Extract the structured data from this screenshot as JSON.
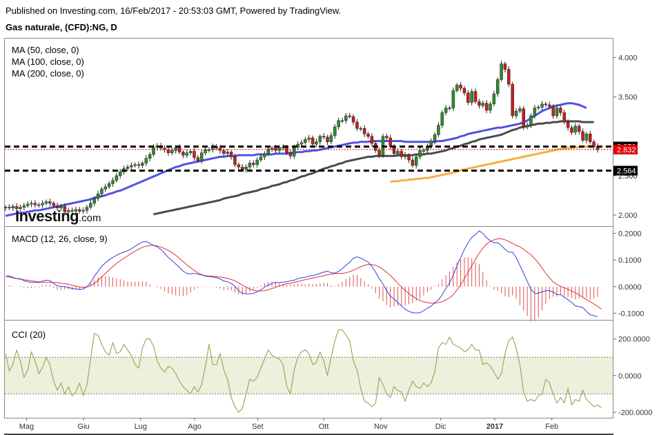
{
  "header": {
    "published_line": "Published on Investing.com, 16/Feb/2017 - 20:53:03 GMT, Powered by TradingView.",
    "symbol_title": "Gas naturale, (CFD):NG, D"
  },
  "watermark": {
    "brand": "Investing",
    "suffix": ".com"
  },
  "colors": {
    "candle_up": "#2e8b2e",
    "candle_down": "#c81e1e",
    "ma50": "#5050e6",
    "ma100": "#4a4a4a",
    "ma200": "#f5b040",
    "macd_line": "#3a3ae0",
    "macd_signal": "#e03030",
    "macd_hist": "#e05050",
    "cci_line": "#9ea85a",
    "cci_band": "#eef0dc",
    "level_line": "#000000",
    "current_price_bg": "#e00000",
    "level_label_bg": "#000000"
  },
  "chart_data": [
    {
      "type": "candlestick",
      "panel": "price",
      "indicators": [
        "MA (50, close, 0)",
        "MA (100, close, 0)",
        "MA (200, close, 0)"
      ],
      "yticks": [
        "4.000",
        "3.500",
        "2.500",
        "2.000"
      ],
      "ylim": [
        1.86,
        4.24
      ],
      "xlabels": [
        "Mag",
        "Giu",
        "Lug",
        "Ago",
        "Set",
        "Ott",
        "Nov",
        "Dic",
        "2017",
        "Feb"
      ],
      "levels": {
        "upper": "2.870",
        "lower": "2.564"
      },
      "current_price": "2.832",
      "close_series": [
        2.1,
        2.09,
        2.11,
        2.08,
        2.1,
        2.12,
        2.14,
        2.15,
        2.13,
        2.13,
        2.15,
        2.17,
        2.15,
        2.12,
        2.09,
        2.11,
        2.04,
        2.06,
        2.05,
        2.07,
        2.05,
        2.06,
        2.1,
        2.15,
        2.21,
        2.27,
        2.33,
        2.36,
        2.4,
        2.44,
        2.5,
        2.55,
        2.59,
        2.61,
        2.63,
        2.64,
        2.63,
        2.66,
        2.72,
        2.77,
        2.86,
        2.88,
        2.85,
        2.83,
        2.79,
        2.82,
        2.86,
        2.8,
        2.76,
        2.79,
        2.81,
        2.73,
        2.69,
        2.79,
        2.83,
        2.83,
        2.87,
        2.85,
        2.82,
        2.78,
        2.8,
        2.74,
        2.64,
        2.61,
        2.58,
        2.61,
        2.66,
        2.64,
        2.7,
        2.74,
        2.78,
        2.84,
        2.85,
        2.82,
        2.86,
        2.86,
        2.79,
        2.75,
        2.86,
        2.9,
        2.92,
        2.96,
        2.98,
        2.9,
        2.93,
        3.0,
        2.99,
        2.93,
        3.01,
        3.12,
        3.2,
        3.2,
        3.26,
        3.25,
        3.18,
        3.1,
        3.1,
        3.03,
        3.0,
        2.91,
        2.82,
        2.76,
        3.0,
        2.98,
        2.87,
        2.78,
        2.81,
        2.74,
        2.76,
        2.7,
        2.63,
        2.74,
        2.82,
        2.82,
        2.87,
        2.94,
        3.02,
        3.14,
        3.3,
        3.36,
        3.36,
        3.58,
        3.65,
        3.61,
        3.55,
        3.43,
        3.57,
        3.44,
        3.39,
        3.42,
        3.33,
        3.41,
        3.54,
        3.72,
        3.92,
        3.85,
        3.66,
        3.26,
        3.32,
        3.35,
        3.12,
        3.14,
        3.26,
        3.36,
        3.37,
        3.41,
        3.4,
        3.38,
        3.26,
        3.36,
        3.3,
        3.18,
        3.11,
        3.05,
        3.13,
        3.06,
        2.95,
        3.03,
        2.93,
        2.87,
        2.83
      ],
      "ma50_series": [
        1.99,
        2.0,
        2.01,
        2.02,
        2.03,
        2.03,
        2.04,
        2.05,
        2.06,
        2.06,
        2.07,
        2.08,
        2.09,
        2.1,
        2.11,
        2.12,
        2.13,
        2.14,
        2.15,
        2.16,
        2.17,
        2.18,
        2.19,
        2.2,
        2.22,
        2.23,
        2.24,
        2.25,
        2.27,
        2.28,
        2.3,
        2.31,
        2.33,
        2.35,
        2.37,
        2.39,
        2.41,
        2.43,
        2.45,
        2.47,
        2.49,
        2.51,
        2.53,
        2.55,
        2.57,
        2.59,
        2.61,
        2.62,
        2.64,
        2.65,
        2.66,
        2.67,
        2.68,
        2.69,
        2.7,
        2.71,
        2.72,
        2.73,
        2.74,
        2.74,
        2.75,
        2.75,
        2.75,
        2.76,
        2.76,
        2.76,
        2.76,
        2.76,
        2.77,
        2.77,
        2.77,
        2.77,
        2.77,
        2.78,
        2.78,
        2.78,
        2.78,
        2.79,
        2.79,
        2.8,
        2.8,
        2.81,
        2.81,
        2.82,
        2.82,
        2.83,
        2.84,
        2.85,
        2.86,
        2.87,
        2.88,
        2.89,
        2.9,
        2.91,
        2.92,
        2.92,
        2.93,
        2.93,
        2.93,
        2.94,
        2.94,
        2.94,
        2.94,
        2.94,
        2.94,
        2.94,
        2.94,
        2.94,
        2.93,
        2.93,
        2.93,
        2.93,
        2.93,
        2.93,
        2.93,
        2.93,
        2.93,
        2.94,
        2.94,
        2.95,
        2.96,
        2.97,
        2.98,
        3.0,
        3.01,
        3.03,
        3.04,
        3.05,
        3.06,
        3.07,
        3.08,
        3.09,
        3.1,
        3.11,
        3.11,
        3.12,
        3.13,
        3.14,
        3.15,
        3.16,
        3.18,
        3.2,
        3.23,
        3.26,
        3.29,
        3.32,
        3.34,
        3.36,
        3.38,
        3.39,
        3.4,
        3.41,
        3.42,
        3.42,
        3.41,
        3.4,
        3.38,
        3.36
      ],
      "ma100_series": [
        null,
        null,
        null,
        null,
        null,
        null,
        null,
        null,
        null,
        null,
        null,
        null,
        null,
        null,
        null,
        null,
        null,
        null,
        null,
        null,
        null,
        null,
        null,
        null,
        null,
        null,
        null,
        null,
        null,
        null,
        null,
        null,
        null,
        null,
        null,
        null,
        null,
        null,
        null,
        null,
        2.01,
        2.02,
        2.03,
        2.04,
        2.05,
        2.06,
        2.07,
        2.08,
        2.09,
        2.1,
        2.11,
        2.12,
        2.13,
        2.14,
        2.15,
        2.16,
        2.17,
        2.18,
        2.19,
        2.21,
        2.22,
        2.23,
        2.24,
        2.25,
        2.27,
        2.28,
        2.29,
        2.3,
        2.31,
        2.33,
        2.34,
        2.35,
        2.37,
        2.38,
        2.39,
        2.41,
        2.42,
        2.44,
        2.45,
        2.47,
        2.49,
        2.5,
        2.52,
        2.53,
        2.55,
        2.57,
        2.59,
        2.6,
        2.62,
        2.63,
        2.65,
        2.66,
        2.68,
        2.69,
        2.7,
        2.71,
        2.72,
        2.73,
        2.74,
        2.74,
        2.75,
        2.75,
        2.75,
        2.75,
        2.75,
        2.75,
        2.76,
        2.76,
        2.76,
        2.76,
        2.76,
        2.77,
        2.77,
        2.77,
        2.78,
        2.78,
        2.79,
        2.8,
        2.81,
        2.82,
        2.84,
        2.85,
        2.87,
        2.88,
        2.9,
        2.91,
        2.93,
        2.94,
        2.96,
        2.97,
        2.98,
        2.99,
        3.0,
        3.01,
        3.02,
        3.04,
        3.06,
        3.08,
        3.09,
        3.11,
        3.12,
        3.13,
        3.14,
        3.15,
        3.16,
        3.16,
        3.17,
        3.17,
        3.18,
        3.18,
        3.19,
        3.19,
        3.19,
        3.19,
        3.19,
        3.19,
        3.18,
        3.18,
        3.18,
        3.18
      ],
      "ma200_series": [
        null,
        null,
        null,
        null,
        null,
        null,
        null,
        null,
        null,
        null,
        null,
        null,
        null,
        null,
        null,
        null,
        null,
        null,
        null,
        null,
        null,
        null,
        null,
        null,
        null,
        null,
        null,
        null,
        null,
        null,
        null,
        null,
        null,
        null,
        null,
        null,
        null,
        null,
        null,
        null,
        null,
        null,
        null,
        null,
        null,
        null,
        null,
        null,
        null,
        null,
        null,
        null,
        null,
        null,
        null,
        null,
        null,
        null,
        null,
        null,
        null,
        null,
        null,
        null,
        null,
        null,
        null,
        null,
        null,
        null,
        null,
        null,
        null,
        null,
        null,
        null,
        null,
        null,
        null,
        null,
        null,
        null,
        null,
        null,
        null,
        null,
        null,
        null,
        null,
        null,
        null,
        null,
        null,
        null,
        null,
        null,
        null,
        null,
        null,
        null,
        null,
        null,
        null,
        null,
        2.42,
        2.43,
        2.43,
        2.44,
        2.44,
        2.45,
        2.45,
        2.46,
        2.46,
        2.47,
        2.47,
        2.48,
        2.49,
        2.5,
        2.51,
        2.52,
        2.53,
        2.54,
        2.55,
        2.57,
        2.58,
        2.59,
        2.6,
        2.61,
        2.62,
        2.63,
        2.64,
        2.65,
        2.66,
        2.67,
        2.68,
        2.69,
        2.7,
        2.71,
        2.72,
        2.73,
        2.74,
        2.75,
        2.76,
        2.77,
        2.78,
        2.79,
        2.8,
        2.81,
        2.82,
        2.83,
        2.84,
        2.84,
        2.85,
        2.85,
        2.86,
        2.86,
        2.87,
        2.87,
        2.88,
        2.88
      ]
    },
    {
      "type": "line+histogram",
      "panel": "macd",
      "title": "MACD (12, 26, close, 9)",
      "yticks": [
        "0.2000",
        "0.1000",
        "0.0000",
        "-0.1000"
      ],
      "ylim": [
        -0.125,
        0.225
      ],
      "macd_series": [
        0.04,
        0.04,
        0.035,
        0.03,
        0.03,
        0.022,
        0.019,
        0.016,
        0.017,
        0.015,
        0.021,
        0.024,
        0.023,
        0.012,
        0.003,
        0.001,
        0.0,
        -0.003,
        -0.007,
        -0.009,
        -0.01,
        -0.009,
        0.0,
        0.016,
        0.039,
        0.058,
        0.077,
        0.09,
        0.101,
        0.11,
        0.118,
        0.125,
        0.13,
        0.135,
        0.142,
        0.152,
        0.16,
        0.168,
        0.17,
        0.163,
        0.155,
        0.15,
        0.14,
        0.125,
        0.11,
        0.098,
        0.085,
        0.072,
        0.058,
        0.05,
        0.048,
        0.05,
        0.047,
        0.044,
        0.039,
        0.038,
        0.037,
        0.034,
        0.029,
        0.021,
        0.018,
        0.012,
        0.001,
        -0.015,
        -0.025,
        -0.027,
        -0.027,
        -0.025,
        -0.02,
        -0.012,
        -0.002,
        0.006,
        0.012,
        0.016,
        0.015,
        0.017,
        0.018,
        0.022,
        0.024,
        0.03,
        0.034,
        0.035,
        0.04,
        0.041,
        0.045,
        0.05,
        0.055,
        0.058,
        0.052,
        0.051,
        0.057,
        0.068,
        0.08,
        0.092,
        0.107,
        0.112,
        0.107,
        0.1,
        0.092,
        0.076,
        0.055,
        0.03,
        0.01,
        -0.015,
        -0.036,
        -0.046,
        -0.06,
        -0.072,
        -0.085,
        -0.093,
        -0.098,
        -0.099,
        -0.098,
        -0.09,
        -0.081,
        -0.074,
        -0.06,
        -0.05,
        -0.03,
        -0.007,
        0.014,
        0.044,
        0.078,
        0.11,
        0.14,
        0.165,
        0.185,
        0.196,
        0.21,
        0.2,
        0.184,
        0.172,
        0.165,
        0.165,
        0.155,
        0.14,
        0.13,
        0.13,
        0.11,
        0.08,
        0.05,
        0.02,
        -0.01,
        -0.025,
        -0.025,
        -0.02,
        -0.015,
        -0.015,
        -0.02,
        -0.03,
        -0.03,
        -0.04,
        -0.049,
        -0.06,
        -0.072,
        -0.075,
        -0.078,
        -0.093,
        -0.106,
        -0.109,
        -0.113
      ],
      "signal_series": [
        0.04,
        0.036,
        0.033,
        0.03,
        0.028,
        0.026,
        0.024,
        0.022,
        0.02,
        0.018,
        0.016,
        0.016,
        0.016,
        0.016,
        0.015,
        0.013,
        0.011,
        0.009,
        0.005,
        0.002,
        -0.001,
        -0.003,
        -0.001,
        0.004,
        0.012,
        0.023,
        0.037,
        0.05,
        0.063,
        0.075,
        0.087,
        0.097,
        0.107,
        0.116,
        0.125,
        0.133,
        0.141,
        0.148,
        0.152,
        0.155,
        0.155,
        0.153,
        0.149,
        0.143,
        0.136,
        0.128,
        0.118,
        0.106,
        0.094,
        0.082,
        0.071,
        0.061,
        0.052,
        0.045,
        0.041,
        0.04,
        0.039,
        0.037,
        0.036,
        0.034,
        0.031,
        0.027,
        0.022,
        0.014,
        0.006,
        -0.002,
        -0.009,
        -0.014,
        -0.016,
        -0.016,
        -0.015,
        -0.012,
        -0.007,
        -0.002,
        0.003,
        0.007,
        0.011,
        0.013,
        0.016,
        0.019,
        0.023,
        0.026,
        0.029,
        0.032,
        0.035,
        0.038,
        0.041,
        0.044,
        0.047,
        0.049,
        0.05,
        0.05,
        0.052,
        0.056,
        0.062,
        0.068,
        0.075,
        0.08,
        0.083,
        0.083,
        0.08,
        0.074,
        0.065,
        0.054,
        0.042,
        0.028,
        0.013,
        -0.001,
        -0.014,
        -0.026,
        -0.036,
        -0.045,
        -0.052,
        -0.057,
        -0.06,
        -0.062,
        -0.062,
        -0.06,
        -0.057,
        -0.05,
        -0.042,
        -0.03,
        -0.013,
        0.007,
        0.03,
        0.054,
        0.079,
        0.103,
        0.125,
        0.145,
        0.16,
        0.17,
        0.176,
        0.18,
        0.18,
        0.176,
        0.17,
        0.163,
        0.155,
        0.15,
        0.14,
        0.13,
        0.12,
        0.105,
        0.09,
        0.07,
        0.05,
        0.032,
        0.018,
        0.008,
        0.001,
        -0.004,
        -0.01,
        -0.017,
        -0.023,
        -0.031,
        -0.04,
        -0.049,
        -0.056,
        -0.065,
        -0.074,
        -0.084
      ]
    },
    {
      "type": "line",
      "panel": "cci",
      "title": "CCI (20)",
      "yticks": [
        "200.0000",
        "0.0000",
        "-200.0000"
      ],
      "ylim": [
        -230,
        300
      ],
      "bands": [
        100,
        -100
      ],
      "cci_series": [
        120,
        25,
        60,
        140,
        80,
        -10,
        30,
        130,
        80,
        10,
        45,
        100,
        60,
        -30,
        -80,
        -40,
        -100,
        -60,
        -110,
        -90,
        -40,
        -110,
        -50,
        90,
        230,
        220,
        170,
        130,
        110,
        180,
        120,
        130,
        170,
        140,
        110,
        60,
        40,
        150,
        200,
        200,
        160,
        80,
        40,
        20,
        50,
        40,
        10,
        -30,
        -60,
        -80,
        -100,
        -60,
        -90,
        -50,
        50,
        170,
        60,
        60,
        120,
        30,
        -20,
        -120,
        -170,
        -200,
        -180,
        -100,
        -20,
        -30,
        -10,
        40,
        90,
        140,
        110,
        100,
        90,
        60,
        -60,
        -100,
        30,
        100,
        130,
        140,
        120,
        60,
        70,
        130,
        80,
        0,
        100,
        190,
        250,
        250,
        220,
        190,
        80,
        30,
        -70,
        -140,
        -150,
        -170,
        -150,
        -10,
        -50,
        -100,
        -120,
        -60,
        -80,
        -90,
        -140,
        -80,
        -30,
        -60,
        -70,
        -40,
        -60,
        -40,
        20,
        150,
        180,
        170,
        210,
        170,
        160,
        150,
        130,
        140,
        170,
        140,
        140,
        60,
        70,
        50,
        20,
        -20,
        10,
        120,
        190,
        210,
        150,
        60,
        -90,
        -140,
        -130,
        -140,
        -110,
        -100,
        -20,
        -40,
        -100,
        -150,
        -120,
        -150,
        -70,
        -160,
        -130,
        -140,
        -80,
        -130,
        -150,
        -170,
        -160,
        -175
      ]
    }
  ]
}
